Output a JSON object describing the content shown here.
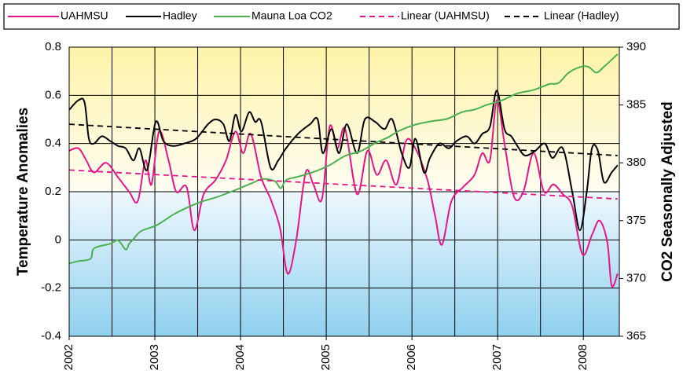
{
  "chart_data": {
    "type": "line",
    "y_label": "Temperature Anomalies",
    "y2_label": "CO2 Seasonally Adjusted",
    "xlim": [
      2002,
      2008.42
    ],
    "xticks": [
      2002,
      2003,
      2004,
      2005,
      2006,
      2007,
      2008
    ],
    "x_minor_ticks": [
      2002.5,
      2003.5,
      2004.5,
      2005.5,
      2006.5,
      2007.5
    ],
    "ylim": [
      -0.4,
      0.8
    ],
    "yticks": [
      -0.4,
      -0.2,
      0,
      0.2,
      0.4,
      0.6,
      0.8
    ],
    "y2lim": [
      365,
      390
    ],
    "y2ticks": [
      365,
      370,
      375,
      380,
      385,
      390
    ],
    "grid": true,
    "legend": "top",
    "series": [
      {
        "name": "UAHMSU",
        "color": "#e6168a",
        "linestyle": "solid",
        "x": [
          2002.0,
          2002.11,
          2002.2,
          2002.29,
          2002.43,
          2002.57,
          2002.7,
          2002.8,
          2002.89,
          2002.96,
          2003.05,
          2003.16,
          2003.25,
          2003.37,
          2003.46,
          2003.57,
          2003.71,
          2003.83,
          2003.94,
          2004.03,
          2004.12,
          2004.24,
          2004.35,
          2004.46,
          2004.55,
          2004.65,
          2004.76,
          2004.85,
          2004.95,
          2005.04,
          2005.13,
          2005.22,
          2005.36,
          2005.48,
          2005.59,
          2005.7,
          2005.82,
          2005.93,
          2006.04,
          2006.18,
          2006.27,
          2006.35,
          2006.46,
          2006.6,
          2006.73,
          2006.82,
          2006.91,
          2006.99,
          2007.08,
          2007.19,
          2007.3,
          2007.42,
          2007.54,
          2007.65,
          2007.76,
          2007.87,
          2007.99,
          2008.1,
          2008.19,
          2008.28,
          2008.33,
          2008.4
        ],
        "values": [
          0.37,
          0.38,
          0.33,
          0.28,
          0.32,
          0.26,
          0.2,
          0.16,
          0.33,
          0.23,
          0.45,
          0.33,
          0.2,
          0.22,
          0.04,
          0.19,
          0.25,
          0.33,
          0.45,
          0.36,
          0.44,
          0.26,
          0.17,
          0.05,
          -0.14,
          0.0,
          0.28,
          0.23,
          0.17,
          0.47,
          0.38,
          0.46,
          0.19,
          0.37,
          0.27,
          0.33,
          0.23,
          0.41,
          0.38,
          0.25,
          0.1,
          -0.02,
          0.16,
          0.22,
          0.27,
          0.36,
          0.33,
          0.58,
          0.4,
          0.18,
          0.2,
          0.36,
          0.2,
          0.23,
          0.19,
          0.14,
          -0.06,
          0.02,
          0.08,
          -0.01,
          -0.19,
          -0.14
        ]
      },
      {
        "name": "Hadley",
        "color": "#000000",
        "linestyle": "solid",
        "x": [
          2002.0,
          2002.11,
          2002.18,
          2002.23,
          2002.29,
          2002.38,
          2002.48,
          2002.57,
          2002.66,
          2002.75,
          2002.82,
          2002.91,
          2003.01,
          2003.1,
          2003.21,
          2003.34,
          2003.48,
          2003.62,
          2003.71,
          2003.8,
          2003.87,
          2003.94,
          2004.01,
          2004.1,
          2004.17,
          2004.24,
          2004.35,
          2004.44,
          2004.53,
          2004.67,
          2004.81,
          2004.9,
          2004.96,
          2005.06,
          2005.15,
          2005.24,
          2005.36,
          2005.45,
          2005.57,
          2005.68,
          2005.77,
          2005.88,
          2005.97,
          2006.04,
          2006.14,
          2006.21,
          2006.32,
          2006.43,
          2006.52,
          2006.64,
          2006.73,
          2006.82,
          2006.91,
          2006.99,
          2007.08,
          2007.16,
          2007.23,
          2007.32,
          2007.44,
          2007.55,
          2007.64,
          2007.76,
          2007.87,
          2007.96,
          2008.04,
          2008.1,
          2008.17,
          2008.24,
          2008.33,
          2008.4
        ],
        "values": [
          0.54,
          0.58,
          0.57,
          0.42,
          0.4,
          0.43,
          0.41,
          0.39,
          0.38,
          0.33,
          0.38,
          0.29,
          0.49,
          0.41,
          0.39,
          0.4,
          0.42,
          0.48,
          0.5,
          0.48,
          0.41,
          0.52,
          0.45,
          0.53,
          0.49,
          0.49,
          0.3,
          0.33,
          0.38,
          0.44,
          0.48,
          0.5,
          0.36,
          0.46,
          0.36,
          0.48,
          0.36,
          0.5,
          0.49,
          0.46,
          0.5,
          0.36,
          0.3,
          0.42,
          0.28,
          0.34,
          0.4,
          0.38,
          0.41,
          0.43,
          0.4,
          0.44,
          0.47,
          0.62,
          0.46,
          0.43,
          0.39,
          0.35,
          0.37,
          0.4,
          0.34,
          0.38,
          0.2,
          0.04,
          0.2,
          0.38,
          0.37,
          0.24,
          0.28,
          0.31
        ]
      },
      {
        "name": "Mauna Loa CO2",
        "color": "#4caf50",
        "linestyle": "solid",
        "axis": "y2",
        "x": [
          2002.0,
          2002.11,
          2002.25,
          2002.29,
          2002.48,
          2002.57,
          2002.66,
          2002.7,
          2002.75,
          2002.84,
          2003.02,
          2003.21,
          2003.34,
          2003.53,
          2003.71,
          2003.89,
          2004.12,
          2004.26,
          2004.4,
          2004.47,
          2004.53,
          2004.67,
          2004.85,
          2005.04,
          2005.22,
          2005.4,
          2005.57,
          2005.72,
          2005.86,
          2006.04,
          2006.23,
          2006.41,
          2006.59,
          2006.73,
          2006.87,
          2007.05,
          2007.23,
          2007.42,
          2007.6,
          2007.71,
          2007.83,
          2007.97,
          2008.06,
          2008.15,
          2008.24,
          2008.4
        ],
        "values": [
          371.3,
          371.5,
          371.7,
          372.6,
          373.0,
          373.3,
          372.5,
          373.0,
          373.4,
          374.1,
          374.6,
          375.5,
          376.0,
          376.6,
          377.0,
          377.5,
          378.2,
          378.6,
          378.4,
          377.8,
          378.5,
          378.8,
          379.2,
          379.8,
          380.6,
          381.0,
          381.7,
          382.2,
          382.8,
          383.3,
          383.6,
          383.8,
          384.4,
          384.6,
          385.0,
          385.4,
          386.0,
          386.3,
          386.8,
          386.9,
          387.8,
          388.3,
          388.3,
          387.8,
          388.3,
          389.4
        ]
      },
      {
        "name": "Linear (UAHMSU)",
        "color": "#e6168a",
        "linestyle": "dashed",
        "x": [
          2002.0,
          2008.4
        ],
        "values": [
          0.29,
          0.17
        ]
      },
      {
        "name": "Linear (Hadley)",
        "color": "#000000",
        "linestyle": "dashed",
        "x": [
          2002.0,
          2008.4
        ],
        "values": [
          0.48,
          0.35
        ]
      }
    ]
  }
}
